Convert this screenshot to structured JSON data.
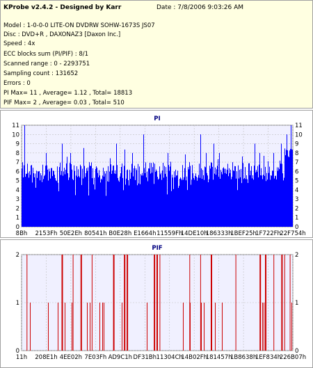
{
  "header": {
    "title": "KProbe v2.4.2 - Designed by Karr",
    "date": "Date : 7/8/2006 9:03:26 AM"
  },
  "info": {
    "lines": [
      "Model : 1-0-0-0 LITE-ON DVDRW SOHW-1673S JS07",
      "Disc : DVD+R , DAXONAZ3 [Daxon Inc.]",
      "Speed : 4x",
      "ECC blocks sum (PI/PIF) : 8/1",
      "Scanned range : 0 - 2293751",
      "Sampling count : 131652",
      "Errors : 0",
      "PI Max= 11 , Average= 1.12 , Total= 18813",
      "PIF Max= 2 , Average= 0.03 , Total= 510"
    ]
  },
  "colors": {
    "pi_fill": "#0000ff",
    "pif_bar": "#cc0000",
    "plot_bg": "#f0f0ff",
    "grid": "#c0c0c0",
    "title_color": "#000080",
    "info_bg": "#ffffe1"
  },
  "chart_data": [
    {
      "type": "bar",
      "title": "PI",
      "ylim": [
        0,
        11
      ],
      "yticks": [
        0,
        1,
        2,
        3,
        4,
        5,
        6,
        7,
        8,
        9,
        10,
        11
      ],
      "xticks": [
        "8Bh",
        "2153Fh",
        "50E2Eh",
        "80541h",
        "B0E28h",
        "E1664h",
        "11559Fh",
        "14DE10h",
        "186333h",
        "1BEF25h",
        "1F722Fh",
        "22F754h"
      ],
      "baseline_range": [
        5,
        7
      ],
      "spikes": [
        [
          0.01,
          11
        ],
        [
          0.09,
          8
        ],
        [
          0.15,
          9
        ],
        [
          0.18,
          8
        ],
        [
          0.25,
          7
        ],
        [
          0.35,
          9
        ],
        [
          0.41,
          8
        ],
        [
          0.45,
          10
        ],
        [
          0.54,
          8
        ],
        [
          0.62,
          7
        ],
        [
          0.66,
          10
        ],
        [
          0.68,
          8
        ],
        [
          0.71,
          9
        ],
        [
          0.73,
          8
        ],
        [
          0.78,
          7
        ],
        [
          0.86,
          9
        ],
        [
          0.88,
          8
        ],
        [
          0.93,
          8
        ],
        [
          0.96,
          9
        ],
        [
          0.98,
          10
        ],
        [
          0.995,
          11
        ]
      ],
      "grid": true,
      "legend": "none"
    },
    {
      "type": "bar",
      "title": "PIF",
      "ylim": [
        0,
        2
      ],
      "yticks": [
        0,
        1,
        2
      ],
      "xticks": [
        "11h",
        "208E1h",
        "4EE02h",
        "7E03Fh",
        "AD9C1h",
        "DF31Bh",
        "11304Ch",
        "14B02Fh",
        "181457h",
        "1B8638h",
        "1EF834h",
        "226B07h"
      ],
      "spikes_value2": [
        0.02,
        0.15,
        0.19,
        0.22,
        0.26,
        0.34,
        0.38,
        0.39,
        0.49,
        0.51,
        0.5,
        0.62,
        0.66,
        0.7,
        0.79,
        0.88,
        0.9,
        0.93,
        0.96,
        0.97,
        0.99
      ],
      "spikes_value1_density": 0.35,
      "grid": true,
      "legend": "none"
    }
  ]
}
